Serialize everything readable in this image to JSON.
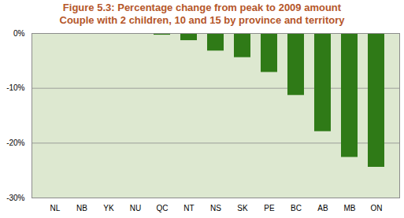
{
  "chart_data": {
    "type": "bar",
    "title": "Figure 5.3: Percentage change from peak to 2009 amount",
    "subtitle": "Couple with 2 children, 10 and 15 by province and territory",
    "categories": [
      "NL",
      "NB",
      "YK",
      "NU",
      "QC",
      "NT",
      "NS",
      "SK",
      "PE",
      "BC",
      "AB",
      "MB",
      "ON"
    ],
    "values": [
      0,
      0,
      0,
      0,
      -0.3,
      -1.3,
      -3.2,
      -4.4,
      -7.1,
      -11.3,
      -17.9,
      -22.6,
      -24.4
    ],
    "color": "#2f7a17",
    "ylim": [
      -30,
      0
    ],
    "yticks": [
      {
        "value": -30,
        "label": "-30%"
      },
      {
        "value": -20,
        "label": "-20%"
      },
      {
        "value": -10,
        "label": "-10%"
      },
      {
        "value": 0,
        "label": "0%"
      }
    ],
    "grid": true
  }
}
